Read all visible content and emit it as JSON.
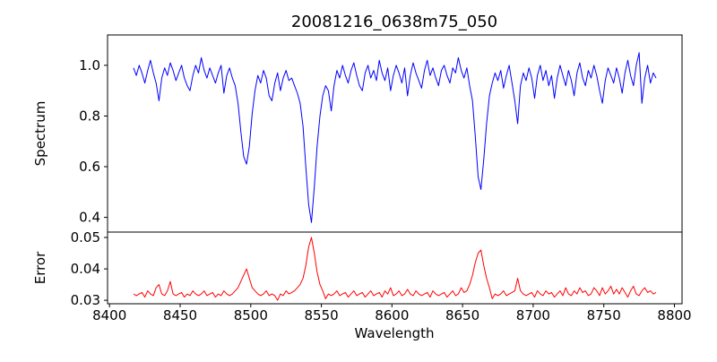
{
  "figure": {
    "title": "20081216_0638m75_050",
    "background_color": "#ffffff",
    "spine_color": "#000000"
  },
  "chart_data": {
    "type": "line",
    "title": "20081216_0638m75_050",
    "xlabel": "Wavelength",
    "xlim": [
      8398.6,
      8805.4
    ],
    "x_start": 8417,
    "x_step": 2,
    "x_end": 8787,
    "x_ticks": [
      8400,
      8450,
      8500,
      8550,
      8600,
      8650,
      8700,
      8750,
      8800
    ],
    "x_tick_labels": [
      "8400",
      "8450",
      "8500",
      "8550",
      "8600",
      "8650",
      "8700",
      "8750",
      "8800"
    ],
    "grid": false,
    "legend": "none",
    "layout_hint": "two vertically stacked panels sharing the x axis, top panel ~2.75x taller",
    "absorption_features": [
      {
        "center": 8498,
        "min_flux": 0.61,
        "error_peak": 0.04
      },
      {
        "center": 8542,
        "min_flux": 0.38,
        "error_peak": 0.05
      },
      {
        "center": 8662,
        "min_flux": 0.51,
        "error_peak": 0.046
      },
      {
        "center": 8689,
        "min_flux": 0.77,
        "error_peak": 0.037
      }
    ],
    "panels": [
      {
        "name": "spectrum",
        "ylabel": "Spectrum",
        "color": "#0000ff",
        "ylim": [
          0.342,
          1.12
        ],
        "y_ticks": [
          0.4,
          0.6,
          0.8,
          1.0
        ],
        "y_tick_labels": [
          "0.4",
          "0.6",
          "0.8",
          "1.0"
        ],
        "values": [
          0.99,
          0.96,
          1.0,
          0.97,
          0.93,
          0.98,
          1.02,
          0.97,
          0.93,
          0.86,
          0.95,
          0.99,
          0.96,
          1.01,
          0.98,
          0.94,
          0.97,
          1.0,
          0.95,
          0.92,
          0.9,
          0.96,
          1.0,
          0.97,
          1.03,
          0.98,
          0.95,
          0.99,
          0.96,
          0.93,
          0.97,
          1.0,
          0.89,
          0.96,
          0.99,
          0.95,
          0.92,
          0.85,
          0.74,
          0.64,
          0.61,
          0.68,
          0.81,
          0.9,
          0.96,
          0.93,
          0.98,
          0.95,
          0.88,
          0.86,
          0.93,
          0.97,
          0.9,
          0.95,
          0.98,
          0.94,
          0.95,
          0.92,
          0.89,
          0.85,
          0.76,
          0.6,
          0.45,
          0.38,
          0.52,
          0.68,
          0.8,
          0.88,
          0.92,
          0.9,
          0.82,
          0.92,
          0.98,
          0.95,
          1.0,
          0.96,
          0.93,
          0.98,
          1.01,
          0.96,
          0.92,
          0.9,
          0.97,
          1.0,
          0.95,
          0.98,
          0.94,
          1.02,
          0.97,
          0.94,
          0.99,
          0.9,
          0.96,
          1.0,
          0.97,
          0.93,
          0.99,
          0.88,
          0.96,
          1.01,
          0.97,
          0.94,
          0.91,
          0.98,
          1.02,
          0.96,
          0.99,
          0.95,
          0.92,
          0.98,
          1.0,
          0.96,
          0.93,
          0.99,
          0.97,
          1.03,
          0.98,
          0.95,
          0.99,
          0.92,
          0.86,
          0.72,
          0.56,
          0.51,
          0.63,
          0.77,
          0.88,
          0.93,
          0.97,
          0.94,
          0.98,
          0.91,
          0.96,
          1.0,
          0.93,
          0.86,
          0.77,
          0.92,
          0.97,
          0.94,
          0.99,
          0.95,
          0.87,
          0.96,
          1.0,
          0.94,
          0.98,
          0.92,
          0.96,
          0.87,
          0.95,
          1.0,
          0.96,
          0.92,
          0.98,
          0.94,
          0.88,
          0.97,
          1.01,
          0.95,
          0.92,
          0.98,
          0.95,
          1.0,
          0.96,
          0.9,
          0.85,
          0.94,
          0.99,
          0.96,
          0.93,
          0.99,
          0.95,
          0.89,
          0.97,
          1.02,
          0.96,
          0.92,
          1.0,
          1.05,
          0.85,
          0.95,
          1.0,
          0.93,
          0.97,
          0.95
        ]
      },
      {
        "name": "error",
        "ylabel": "Error",
        "color": "#ff0000",
        "ylim": [
          0.0289,
          0.0517
        ],
        "y_ticks": [
          0.03,
          0.04,
          0.05
        ],
        "y_tick_labels": [
          "0.03",
          "0.04",
          "0.05"
        ],
        "values": [
          0.032,
          0.0315,
          0.032,
          0.0325,
          0.031,
          0.033,
          0.032,
          0.0315,
          0.034,
          0.035,
          0.032,
          0.0315,
          0.033,
          0.036,
          0.032,
          0.0315,
          0.032,
          0.0325,
          0.031,
          0.032,
          0.0315,
          0.033,
          0.032,
          0.0315,
          0.032,
          0.033,
          0.0315,
          0.032,
          0.0325,
          0.031,
          0.032,
          0.0315,
          0.033,
          0.032,
          0.0315,
          0.032,
          0.033,
          0.034,
          0.036,
          0.038,
          0.04,
          0.037,
          0.034,
          0.033,
          0.032,
          0.0315,
          0.032,
          0.033,
          0.0315,
          0.032,
          0.0315,
          0.03,
          0.032,
          0.0315,
          0.033,
          0.032,
          0.0325,
          0.033,
          0.034,
          0.035,
          0.037,
          0.041,
          0.047,
          0.05,
          0.045,
          0.039,
          0.035,
          0.033,
          0.0305,
          0.032,
          0.0315,
          0.032,
          0.033,
          0.0315,
          0.032,
          0.0325,
          0.031,
          0.032,
          0.033,
          0.0315,
          0.032,
          0.0325,
          0.031,
          0.032,
          0.033,
          0.0315,
          0.032,
          0.0325,
          0.031,
          0.033,
          0.032,
          0.034,
          0.0315,
          0.032,
          0.033,
          0.0315,
          0.032,
          0.0335,
          0.032,
          0.0315,
          0.033,
          0.032,
          0.0315,
          0.032,
          0.0325,
          0.031,
          0.033,
          0.032,
          0.0315,
          0.032,
          0.0325,
          0.031,
          0.032,
          0.033,
          0.0315,
          0.032,
          0.034,
          0.0325,
          0.033,
          0.035,
          0.038,
          0.042,
          0.045,
          0.046,
          0.041,
          0.037,
          0.034,
          0.0305,
          0.032,
          0.0315,
          0.032,
          0.033,
          0.0315,
          0.032,
          0.0325,
          0.033,
          0.037,
          0.033,
          0.032,
          0.0315,
          0.032,
          0.0325,
          0.031,
          0.033,
          0.032,
          0.0315,
          0.033,
          0.032,
          0.0325,
          0.031,
          0.032,
          0.033,
          0.0315,
          0.034,
          0.032,
          0.0315,
          0.033,
          0.032,
          0.034,
          0.0325,
          0.033,
          0.0315,
          0.032,
          0.034,
          0.033,
          0.0315,
          0.034,
          0.032,
          0.033,
          0.0345,
          0.032,
          0.0335,
          0.032,
          0.034,
          0.0325,
          0.031,
          0.033,
          0.0345,
          0.032,
          0.0315,
          0.033,
          0.034,
          0.0325,
          0.033,
          0.032,
          0.0325
        ]
      }
    ]
  }
}
